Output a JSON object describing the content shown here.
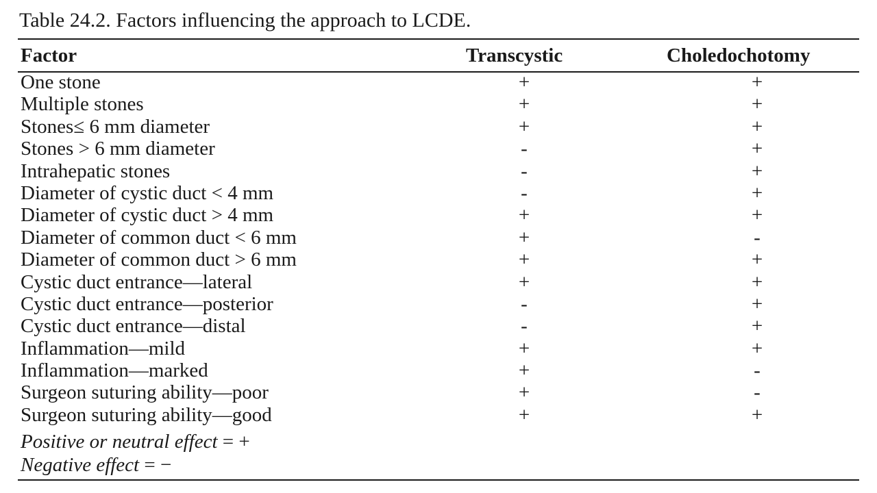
{
  "caption": "Table 24.2.   Factors influencing the approach to LCDE.",
  "columns": {
    "factor": "Factor",
    "transcystic": "Transcystic",
    "choledochotomy": "Choledochotomy"
  },
  "rows": [
    {
      "factor": "One stone",
      "transcystic": "+",
      "choledochotomy": "+"
    },
    {
      "factor": "Multiple stones",
      "transcystic": "+",
      "choledochotomy": "+"
    },
    {
      "factor": "Stones≤ 6 mm diameter",
      "transcystic": "+",
      "choledochotomy": "+"
    },
    {
      "factor": "Stones > 6 mm diameter",
      "transcystic": "-",
      "choledochotomy": "+"
    },
    {
      "factor": "Intrahepatic stones",
      "transcystic": "-",
      "choledochotomy": "+"
    },
    {
      "factor": "Diameter of cystic duct < 4 mm",
      "transcystic": "-",
      "choledochotomy": "+"
    },
    {
      "factor": "Diameter of cystic duct > 4 mm",
      "transcystic": "+",
      "choledochotomy": "+"
    },
    {
      "factor": "Diameter of common duct < 6 mm",
      "transcystic": "+",
      "choledochotomy": "-"
    },
    {
      "factor": "Diameter of common duct > 6 mm",
      "transcystic": "+",
      "choledochotomy": "+"
    },
    {
      "factor": "Cystic duct entrance—lateral",
      "transcystic": "+",
      "choledochotomy": "+"
    },
    {
      "factor": "Cystic duct entrance—posterior",
      "transcystic": "-",
      "choledochotomy": "+"
    },
    {
      "factor": "Cystic duct entrance—distal",
      "transcystic": "-",
      "choledochotomy": "+"
    },
    {
      "factor": "Inflammation—mild",
      "transcystic": "+",
      "choledochotomy": "+"
    },
    {
      "factor": "Inflammation—marked",
      "transcystic": "+",
      "choledochotomy": "-"
    },
    {
      "factor": "Surgeon suturing ability—poor",
      "transcystic": "+",
      "choledochotomy": "-"
    },
    {
      "factor": "Surgeon suturing ability—good",
      "transcystic": "+",
      "choledochotomy": "+"
    }
  ],
  "notes": [
    {
      "text": "Positive or neutral effect",
      "symbol": " = +"
    },
    {
      "text": "Negative effect",
      "symbol": " = −"
    }
  ]
}
